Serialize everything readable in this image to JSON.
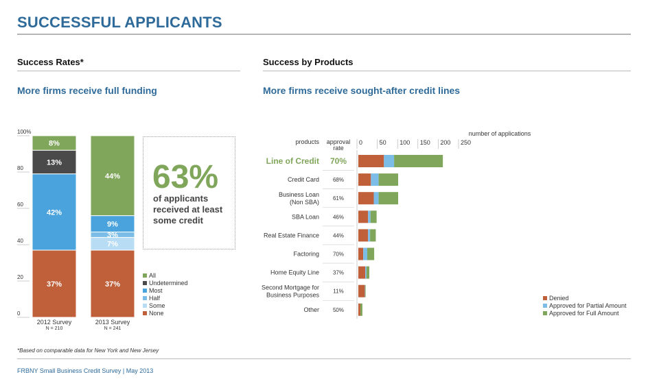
{
  "page": {
    "title": "SUCCESSFUL APPLICANTS",
    "footnote": "*Based on comparable data for New York and New Jersey",
    "footer": "FRBNY Small Business Credit Survey  |  May 2013"
  },
  "left_panel": {
    "section_title": "Success Rates*",
    "subtitle": "More firms receive full funding",
    "callout": {
      "value": "63%",
      "text_lines": [
        "of applicants",
        "received at least",
        "some credit"
      ]
    }
  },
  "right_panel": {
    "section_title": "Success by Products",
    "subtitle": "More firms receive sought-after credit lines"
  },
  "colors": {
    "all": "#7fa65a",
    "undetermined": "#4a4a4a",
    "most": "#4aa3dd",
    "half": "#7cbde8",
    "some": "#b8dcf4",
    "none": "#c0603a",
    "denied": "#c0603a",
    "partial": "#7cbde8",
    "full": "#7fa65a",
    "highlight": "#7fa65a"
  },
  "chart_data": [
    {
      "type": "bar",
      "stacked": true,
      "categories": [
        "2012 Survey",
        "2013 Survey"
      ],
      "category_notes": [
        "N = 210",
        "N = 241"
      ],
      "y_ticks": [
        "0",
        "20",
        "40",
        "60",
        "80",
        "100%"
      ],
      "ylim": [
        0,
        100
      ],
      "series": [
        {
          "name": "None",
          "color_key": "none",
          "values": [
            37,
            37
          ],
          "labels": [
            "37%",
            "37%"
          ]
        },
        {
          "name": "Some",
          "color_key": "some",
          "values": [
            0,
            7
          ],
          "labels": [
            "",
            "7%"
          ]
        },
        {
          "name": "Half",
          "color_key": "half",
          "values": [
            0,
            3
          ],
          "labels": [
            "",
            "3%"
          ]
        },
        {
          "name": "Most",
          "color_key": "most",
          "values": [
            42,
            9
          ],
          "labels": [
            "42%",
            "9%"
          ]
        },
        {
          "name": "Undetermined",
          "color_key": "undetermined",
          "values": [
            13,
            0
          ],
          "labels": [
            "13%",
            ""
          ]
        },
        {
          "name": "All",
          "color_key": "all",
          "values": [
            8,
            44
          ],
          "labels": [
            "8%",
            "44%"
          ]
        }
      ],
      "legend": {
        "placement": "right",
        "entries": [
          "All",
          "Undetermined",
          "Most",
          "Half",
          "Some",
          "None"
        ],
        "color_keys": [
          "all",
          "undetermined",
          "most",
          "half",
          "some",
          "none"
        ]
      }
    },
    {
      "type": "bar",
      "orientation": "horizontal",
      "stacked": true,
      "header_products": "products",
      "header_rate": [
        "approval",
        "rate"
      ],
      "xlabel": "number of applications",
      "x_ticks": [
        "0",
        "50",
        "100",
        "150",
        "200",
        "250"
      ],
      "xlim": [
        0,
        250
      ],
      "categories": [
        {
          "lines": [
            "Line of Credit"
          ],
          "rate": "70%",
          "highlight": true
        },
        {
          "lines": [
            "Credit Card"
          ],
          "rate": "68%"
        },
        {
          "lines": [
            "Business Loan",
            "(Non SBA)"
          ],
          "rate": "61%"
        },
        {
          "lines": [
            "SBA Loan"
          ],
          "rate": "46%"
        },
        {
          "lines": [
            "Real Estate Finance"
          ],
          "rate": "44%"
        },
        {
          "lines": [
            "Factoring"
          ],
          "rate": "70%"
        },
        {
          "lines": [
            "Home Equity Line"
          ],
          "rate": "37%"
        },
        {
          "lines": [
            "Second Mortgage for",
            "Business Purposes"
          ],
          "rate": "11%"
        },
        {
          "lines": [
            "Other"
          ],
          "rate": "50%"
        }
      ],
      "series": [
        {
          "name": "Denied",
          "color_key": "denied",
          "values": [
            63,
            31,
            38,
            24,
            24,
            12,
            17,
            16,
            5
          ]
        },
        {
          "name": "Approved for Partial Amount",
          "color_key": "partial",
          "values": [
            25,
            19,
            12,
            6,
            5,
            10,
            3,
            1,
            0
          ]
        },
        {
          "name": "Approved for Full Amount",
          "color_key": "full",
          "values": [
            120,
            48,
            48,
            15,
            14,
            17,
            7,
            1,
            5
          ]
        }
      ],
      "legend": {
        "placement": "bottom-right"
      }
    }
  ]
}
